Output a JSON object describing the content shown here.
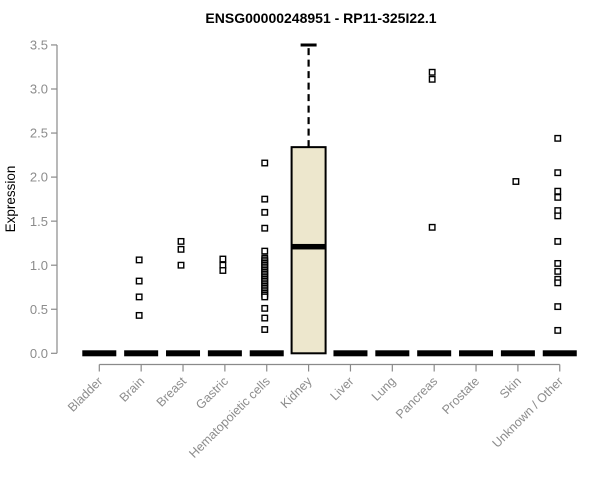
{
  "chart_data": {
    "type": "boxplot",
    "title": "ENSG00000248951 - RP11-325I22.1",
    "ylabel": "Expression",
    "xlabel": "",
    "ylim": [
      0.0,
      3.5
    ],
    "yticks": [
      "0.0",
      "0.5",
      "1.0",
      "1.5",
      "2.0",
      "2.5",
      "3.0",
      "3.5"
    ],
    "grid": "off",
    "legend": "none",
    "categories": [
      "Bladder",
      "Brain",
      "Breast",
      "Gastric",
      "Hematopoietic cells",
      "Kidney",
      "Liver",
      "Lung",
      "Pancreas",
      "Prostate",
      "Skin",
      "Unknown / Other"
    ],
    "boxes": [
      {
        "q1": 0.0,
        "median": 0.0,
        "q3": 0.0,
        "whisker_low": 0.0,
        "whisker_high": 0.0
      },
      {
        "q1": 0.0,
        "median": 0.0,
        "q3": 0.0,
        "whisker_low": 0.0,
        "whisker_high": 0.0
      },
      {
        "q1": 0.0,
        "median": 0.0,
        "q3": 0.0,
        "whisker_low": 0.0,
        "whisker_high": 0.0
      },
      {
        "q1": 0.0,
        "median": 0.0,
        "q3": 0.0,
        "whisker_low": 0.0,
        "whisker_high": 0.0
      },
      {
        "q1": 0.0,
        "median": 0.0,
        "q3": 0.0,
        "whisker_low": 0.0,
        "whisker_high": 0.0
      },
      {
        "q1": 0.0,
        "median": 1.21,
        "q3": 2.34,
        "whisker_low": 0.0,
        "whisker_high": 3.5
      },
      {
        "q1": 0.0,
        "median": 0.0,
        "q3": 0.0,
        "whisker_low": 0.0,
        "whisker_high": 0.0
      },
      {
        "q1": 0.0,
        "median": 0.0,
        "q3": 0.0,
        "whisker_low": 0.0,
        "whisker_high": 0.0
      },
      {
        "q1": 0.0,
        "median": 0.0,
        "q3": 0.0,
        "whisker_low": 0.0,
        "whisker_high": 0.0
      },
      {
        "q1": 0.0,
        "median": 0.0,
        "q3": 0.0,
        "whisker_low": 0.0,
        "whisker_high": 0.0
      },
      {
        "q1": 0.0,
        "median": 0.0,
        "q3": 0.0,
        "whisker_low": 0.0,
        "whisker_high": 0.0
      },
      {
        "q1": 0.0,
        "median": 0.0,
        "q3": 0.0,
        "whisker_low": 0.0,
        "whisker_high": 0.0
      }
    ],
    "outliers": [
      [],
      [
        1.06,
        0.82,
        0.64,
        0.43
      ],
      [
        1.27,
        1.18,
        1.0
      ],
      [
        1.07,
        1.0,
        0.94
      ],
      [
        2.16,
        1.75,
        1.6,
        1.42,
        1.16,
        1.08,
        1.06,
        1.04,
        1.02,
        1.0,
        0.98,
        0.96,
        0.94,
        0.92,
        0.9,
        0.88,
        0.86,
        0.84,
        0.82,
        0.8,
        0.78,
        0.76,
        0.74,
        0.72,
        0.7,
        0.68,
        0.66,
        0.64,
        0.51,
        0.4,
        0.27
      ],
      [],
      [],
      [],
      [
        3.19,
        3.11,
        1.43
      ],
      [],
      [
        1.95
      ],
      [
        2.44,
        2.05,
        1.84,
        1.77,
        1.62,
        1.56,
        1.27,
        1.02,
        0.93,
        0.84,
        0.8,
        0.53,
        0.26
      ]
    ],
    "colors": {
      "box_fill": "#EDE7CD",
      "box_border": "#000000",
      "median": "#000000",
      "whisker": "#000000",
      "outlier_stroke": "#000000",
      "outlier_fill": "#FFFFFF",
      "axis_line": "#8A8A8A",
      "tick_text": "#8C8C8C",
      "title_text": "#000000",
      "background": "#FFFFFF"
    }
  }
}
